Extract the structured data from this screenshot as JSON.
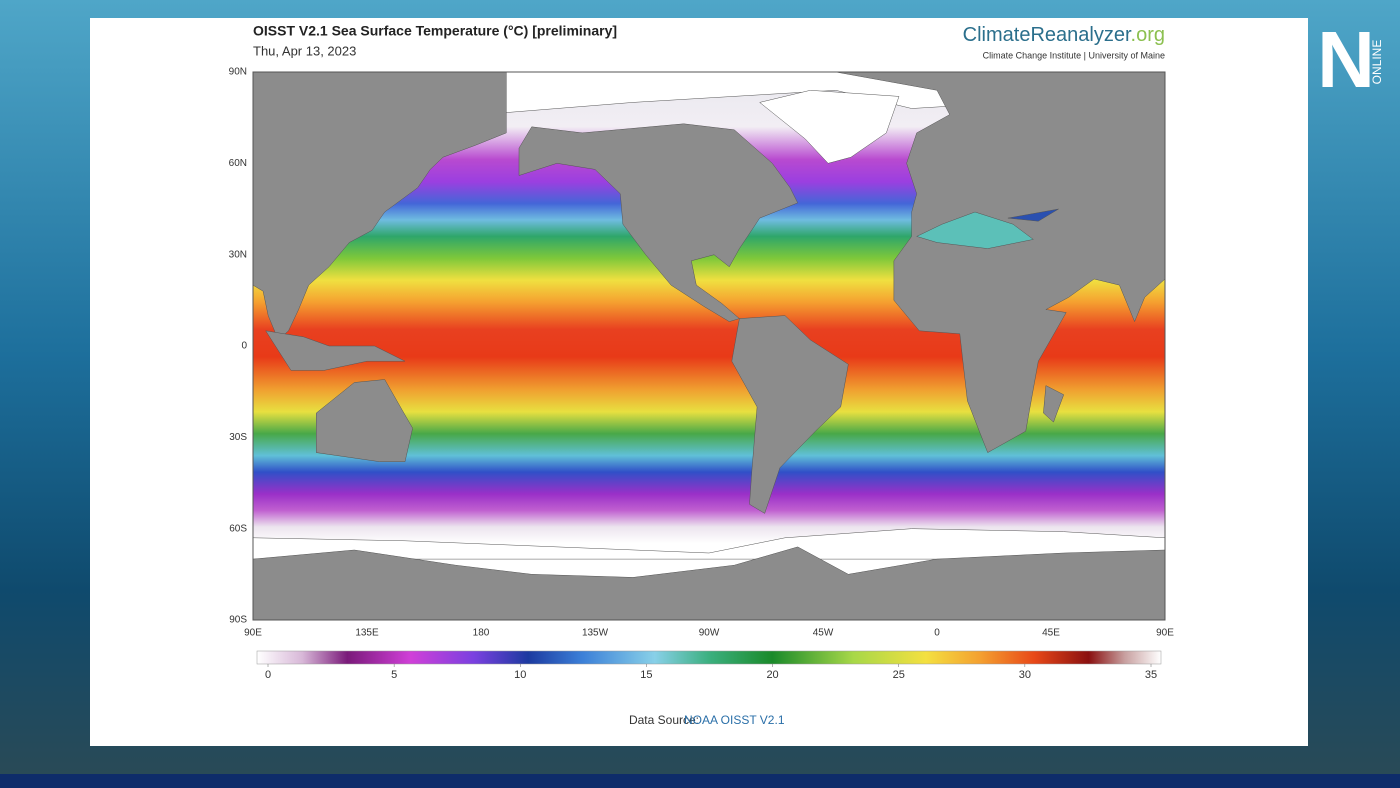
{
  "header": {
    "title": "OISST V2.1 Sea Surface Temperature (°C) [preliminary]",
    "date": "Thu, Apr 13, 2023",
    "brand": {
      "name": "ClimateReanalyzer",
      "suffix": ".org"
    },
    "affiliation": "Climate Change Institute | University of Maine"
  },
  "map": {
    "lat_labels": [
      "90N",
      "60N",
      "30N",
      "0",
      "30S",
      "60S",
      "90S"
    ],
    "lon_labels": [
      "90E",
      "135E",
      "180",
      "135W",
      "90W",
      "45W",
      "0",
      "45E",
      "90E"
    ]
  },
  "colorbar": {
    "ticks": [
      0,
      5,
      10,
      15,
      20,
      25,
      30,
      35
    ]
  },
  "footer": {
    "source_label": "Data Source:",
    "source": "NOAA OISST V2.1"
  },
  "logo": {
    "letter": "N",
    "text": "ONLINE"
  }
}
